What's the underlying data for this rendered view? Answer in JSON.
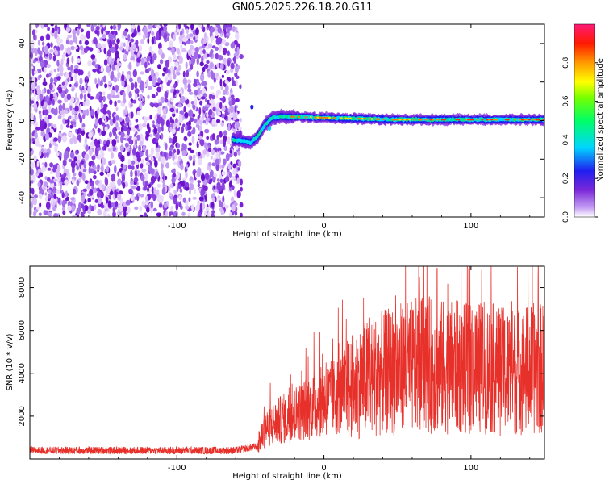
{
  "title": "GN05.2025.226.18.20.G11",
  "chart_data": [
    {
      "type": "heatmap",
      "xlabel": "Height of straight line (km)",
      "ylabel": "Frequency (Hz)",
      "xlim": [
        -200,
        150
      ],
      "ylim": [
        -50,
        50
      ],
      "xticks": [
        -100,
        0,
        100
      ],
      "yticks": [
        -40,
        -20,
        0,
        20,
        40
      ],
      "colorbar": {
        "label": "Normalized spectral amplitude",
        "range": [
          0,
          1
        ],
        "ticks": [
          0.0,
          0.2,
          0.4,
          0.6,
          0.8
        ],
        "tick_labels": [
          "0.0",
          "0.2",
          "0.4",
          "0.6",
          "0.8"
        ],
        "colormap": "rainbow (white → purple → blue → cyan → green → yellow → orange → red → pink)"
      },
      "features": {
        "noise_region_x": [
          -200,
          -55
        ],
        "signal_track": {
          "x": [
            -62,
            -55,
            -50,
            -45,
            -40,
            -35,
            -30,
            -20,
            0,
            50,
            100,
            150
          ],
          "frequency_hz": [
            -10,
            -10.5,
            -11.5,
            -8,
            -2,
            1.5,
            2,
            2,
            1.5,
            0.5,
            0.5,
            0.5
          ]
        }
      }
    },
    {
      "type": "line",
      "xlabel": "Height of straight line (km)",
      "ylabel": "SNR (10 * v/v)",
      "xlim": [
        -200,
        150
      ],
      "ylim": [
        0,
        9000
      ],
      "xticks": [
        -100,
        0,
        100
      ],
      "yticks": [
        2000,
        4000,
        6000,
        8000
      ],
      "series": [
        {
          "color": "#e8302a",
          "x": [
            -200,
            -150,
            -100,
            -60,
            -45,
            -40,
            -30,
            -20,
            -10,
            0,
            10,
            20,
            30,
            40,
            50,
            60,
            70,
            80,
            90,
            100,
            110,
            120,
            130,
            140,
            150
          ],
          "values": [
            400,
            400,
            400,
            400,
            600,
            1400,
            1800,
            2100,
            2400,
            2700,
            3000,
            3400,
            3800,
            4000,
            4200,
            4300,
            4400,
            4300,
            4300,
            4200,
            4300,
            4100,
            4100,
            4200,
            4200
          ],
          "peak": {
            "x": 77,
            "y": 8900
          }
        }
      ]
    }
  ]
}
